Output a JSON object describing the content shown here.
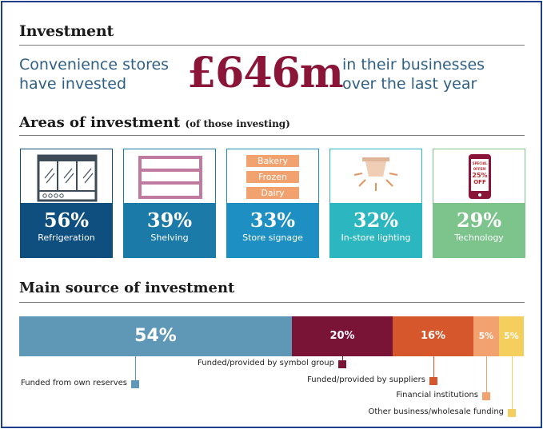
{
  "header": {
    "title": "Investment",
    "lead_left_line1": "Convenience stores",
    "lead_left_line2": "have invested",
    "amount": "£646m",
    "lead_right_line1": "in their businesses",
    "lead_right_line2": "over the last year"
  },
  "areas": {
    "title": "Areas of investment",
    "subtitle": "(of those investing)",
    "cards": [
      {
        "pct": "56%",
        "label": "Refrigeration",
        "color": "#0f4f80",
        "icon": "fridge-icon"
      },
      {
        "pct": "39%",
        "label": "Shelving",
        "color": "#1b7aa8",
        "icon": "shelving-icon"
      },
      {
        "pct": "33%",
        "label": "Store signage",
        "color": "#1e8fc2",
        "icon": "signage-icon"
      },
      {
        "pct": "32%",
        "label": "In-store lighting",
        "color": "#2bb6c0",
        "icon": "lamp-icon"
      },
      {
        "pct": "29%",
        "label": "Technology",
        "color": "#7cc48c",
        "icon": "phone-icon"
      }
    ],
    "signage": [
      "Bakery",
      "Frozen",
      "Dairy"
    ],
    "phone_text": [
      "SPECIAL",
      "OFFER!",
      "25%",
      "OFF"
    ]
  },
  "source": {
    "title": "Main source of investment",
    "segments": [
      {
        "pct": "54%",
        "value": 54,
        "label": "Funded from own reserves",
        "color": "#5f97b7"
      },
      {
        "pct": "20%",
        "value": 20,
        "label": "Funded/provided by symbol group",
        "color": "#7a1437"
      },
      {
        "pct": "16%",
        "value": 16,
        "label": "Funded/provided by suppliers",
        "color": "#d6572b"
      },
      {
        "pct": "5%",
        "value": 5,
        "label": "Financial institutions",
        "color": "#f2a26e"
      },
      {
        "pct": "5%",
        "value": 5,
        "label": "Other business/wholesale funding",
        "color": "#f5cf5e"
      }
    ]
  }
}
